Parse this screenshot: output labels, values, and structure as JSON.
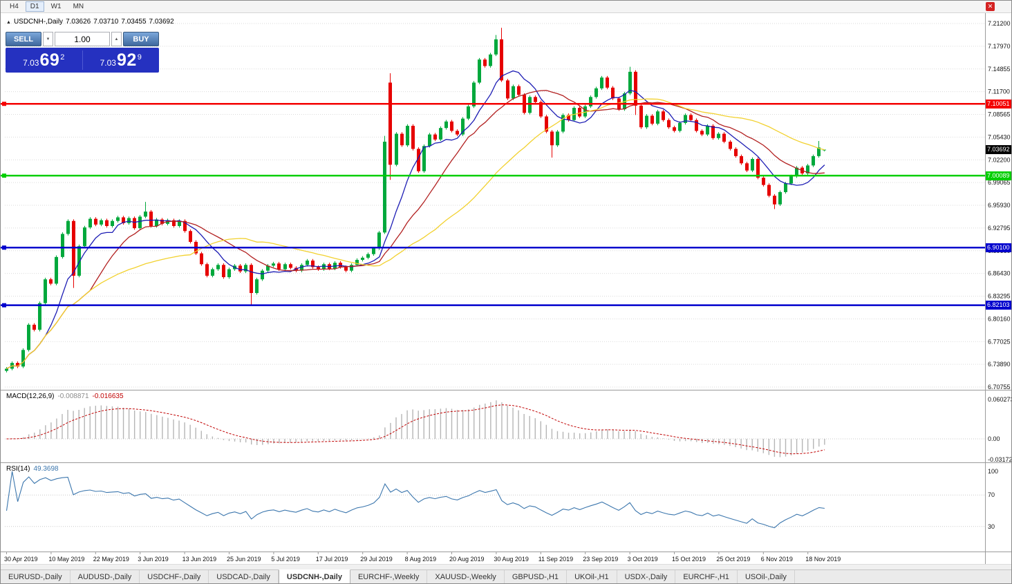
{
  "toolbar": {
    "timeframes": [
      "H4",
      "D1",
      "W1",
      "MN"
    ],
    "active": "D1"
  },
  "chart": {
    "expand_icon": "▲",
    "symbol_timeframe": "USDCNH-,Daily",
    "open": "7.03626",
    "high": "7.03710",
    "low": "7.03455",
    "close": "7.03692"
  },
  "trade_panel": {
    "sell_label": "SELL",
    "buy_label": "BUY",
    "volume": "1.00",
    "decrement_icon": "▼",
    "increment_icon": "▲",
    "sell_price_main": "7.03",
    "sell_price_big": "69",
    "sell_price_sup": "2",
    "buy_price_main": "7.03",
    "buy_price_big": "92",
    "buy_price_sup": "9"
  },
  "price_axis": {
    "ticks": [
      "7.21200",
      "7.17970",
      "7.14855",
      "7.11700",
      "7.08565",
      "7.05430",
      "7.02200",
      "6.99065",
      "6.95930",
      "6.92795",
      "6.89660",
      "6.86430",
      "6.83295",
      "6.80160",
      "6.77025",
      "6.73890",
      "6.70755"
    ]
  },
  "hlines": [
    {
      "price": 7.10051,
      "label": "7.10051",
      "color": "#f40000"
    },
    {
      "price": 7.00089,
      "label": "7.00089",
      "color": "#00ce00"
    },
    {
      "price": 6.901,
      "label": "6.90100",
      "color": "#0000cd"
    },
    {
      "price": 6.82103,
      "label": "6.82103",
      "color": "#0000cd"
    }
  ],
  "current_price": {
    "value": 7.03692,
    "label": "7.03692",
    "color": "#000000"
  },
  "macd_panel": {
    "title": "MACD(12,26,9)",
    "value1": "-0.008871",
    "value2": "-0.016635",
    "axis": [
      "0.060273",
      "0.00",
      "-0.031725"
    ]
  },
  "rsi_panel": {
    "title": "RSI(14)",
    "value": "49.3698",
    "axis": [
      "100",
      "70",
      "30"
    ],
    "levels": [
      70,
      30
    ]
  },
  "time_axis": {
    "labels": [
      "30 Apr 2019",
      "10 May 2019",
      "22 May 2019",
      "3 Jun 2019",
      "13 Jun 2019",
      "25 Jun 2019",
      "5 Jul 2019",
      "17 Jul 2019",
      "29 Jul 2019",
      "8 Aug 2019",
      "20 Aug 2019",
      "30 Aug 2019",
      "11 Sep 2019",
      "23 Sep 2019",
      "3 Oct 2019",
      "15 Oct 2019",
      "25 Oct 2019",
      "6 Nov 2019",
      "18 Nov 2019"
    ]
  },
  "tabs": [
    {
      "label": "EURUSD-,Daily"
    },
    {
      "label": "AUDUSD-,Daily"
    },
    {
      "label": "USDCHF-,Daily"
    },
    {
      "label": "USDCAD-,Daily"
    },
    {
      "label": "USDCNH-,Daily",
      "active": true
    },
    {
      "label": "EURCHF-,Weekly"
    },
    {
      "label": "XAUUSD-,Weekly"
    },
    {
      "label": "GBPUSD-,H1"
    },
    {
      "label": "UKOil-,H1"
    },
    {
      "label": "USDX-,Daily"
    },
    {
      "label": "EURCHF-,H1"
    },
    {
      "label": "USOil-,Daily"
    }
  ],
  "chart_data": {
    "type": "candlestick",
    "symbol": "USDCNH-",
    "timeframe": "Daily",
    "title": "USDCNH- Daily with MACD(12,26,9) and RSI(14)",
    "ylim": [
      6.70755,
      7.212
    ],
    "up_color": "#00a83c",
    "down_color": "#e60000",
    "first_open": 6.73,
    "closes": [
      6.733,
      6.741,
      6.736,
      6.759,
      6.794,
      6.787,
      6.824,
      6.857,
      6.851,
      6.888,
      6.92,
      6.938,
      6.862,
      6.903,
      6.929,
      6.941,
      6.933,
      6.939,
      6.931,
      6.938,
      6.943,
      6.935,
      6.942,
      6.928,
      6.944,
      6.951,
      6.931,
      6.94,
      6.934,
      6.939,
      6.931,
      6.938,
      6.924,
      6.909,
      6.893,
      6.878,
      6.862,
      6.871,
      6.877,
      6.86,
      6.871,
      6.876,
      6.868,
      6.877,
      6.838,
      6.857,
      6.869,
      6.876,
      6.879,
      6.871,
      6.878,
      6.873,
      6.869,
      6.877,
      6.883,
      6.874,
      6.871,
      6.878,
      6.872,
      6.88,
      6.874,
      6.869,
      6.877,
      6.884,
      6.887,
      6.892,
      6.9,
      6.922,
      7.048,
      7.016,
      7.059,
      7.043,
      7.07,
      7.038,
      7.007,
      7.042,
      7.058,
      7.051,
      7.067,
      7.076,
      7.063,
      7.058,
      7.08,
      7.097,
      7.13,
      7.162,
      7.153,
      7.169,
      7.19,
      7.133,
      7.108,
      7.125,
      7.113,
      7.088,
      7.11,
      7.103,
      7.083,
      7.062,
      7.043,
      7.062,
      7.085,
      7.078,
      7.095,
      7.083,
      7.097,
      7.11,
      7.122,
      7.137,
      7.123,
      7.108,
      7.093,
      7.115,
      7.145,
      7.098,
      7.068,
      7.084,
      7.073,
      7.09,
      7.078,
      7.068,
      7.063,
      7.074,
      7.085,
      7.078,
      7.063,
      7.058,
      7.07,
      7.053,
      7.059,
      7.048,
      7.038,
      7.028,
      7.018,
      7.008,
      7.024,
      6.998,
      6.988,
      6.973,
      6.961,
      6.978,
      6.99,
      7.0,
      7.012,
      7.004,
      7.015,
      7.028,
      7.04,
      7.03692
    ],
    "open_overrides": {
      "69": 7.13,
      "147": 7.03626
    },
    "high_overrides": {
      "25": 6.9645,
      "68": 7.056,
      "69": 7.143,
      "88": 7.196,
      "89": 7.206,
      "112": 7.152,
      "146": 7.049,
      "147": 7.0371
    },
    "low_overrides": {
      "12": 6.845,
      "44": 6.8215,
      "69": 6.995,
      "98": 7.026,
      "113": 7.085,
      "138": 6.9545,
      "147": 7.03455
    },
    "moving_averages": [
      {
        "name": "ma-fast",
        "period": 8,
        "color": "#1c1cb4"
      },
      {
        "name": "ma-medium",
        "period": 16,
        "color": "#b22020"
      },
      {
        "name": "ma-slow",
        "period": 34,
        "color": "#f2d12e"
      }
    ],
    "indicators": {
      "macd": {
        "fast": 12,
        "slow": 26,
        "signal": 9,
        "hist_color": "#b5b5b5",
        "signal_color": "#c00000"
      },
      "rsi": {
        "period": 14,
        "color": "#3b76ad",
        "levels": [
          70,
          30
        ]
      }
    }
  }
}
